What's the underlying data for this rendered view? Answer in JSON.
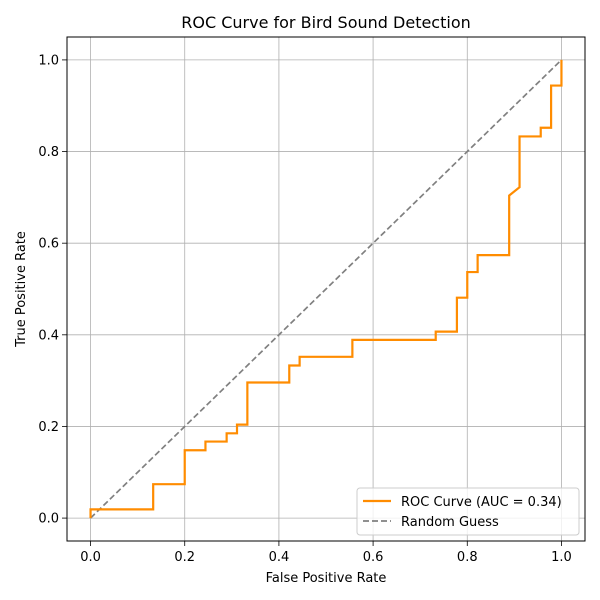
{
  "chart_data": {
    "type": "line",
    "title": "ROC Curve for Bird Sound Detection",
    "xlabel": "False Positive Rate",
    "ylabel": "True Positive Rate",
    "xlim": [
      -0.05,
      1.05
    ],
    "ylim": [
      -0.05,
      1.05
    ],
    "xticks": [
      0.0,
      0.2,
      0.4,
      0.6,
      0.8,
      1.0
    ],
    "yticks": [
      0.0,
      0.2,
      0.4,
      0.6,
      0.8,
      1.0
    ],
    "xtick_labels": [
      "0.0",
      "0.2",
      "0.4",
      "0.6",
      "0.8",
      "1.0"
    ],
    "ytick_labels": [
      "0.0",
      "0.2",
      "0.4",
      "0.6",
      "0.8",
      "1.0"
    ],
    "grid": true,
    "legend_position": "lower-right",
    "series": [
      {
        "name": "ROC Curve (AUC = 0.34)",
        "color": "#ff8c00",
        "style": "solid",
        "x": [
          0.0,
          0.0,
          0.133,
          0.133,
          0.2,
          0.2,
          0.244,
          0.244,
          0.289,
          0.289,
          0.311,
          0.311,
          0.333,
          0.333,
          0.422,
          0.422,
          0.444,
          0.444,
          0.556,
          0.556,
          0.733,
          0.733,
          0.778,
          0.778,
          0.8,
          0.8,
          0.822,
          0.822,
          0.889,
          0.889,
          0.911,
          0.911,
          0.956,
          0.956,
          0.978,
          0.978,
          1.0,
          1.0
        ],
        "y": [
          0.0,
          0.019,
          0.019,
          0.074,
          0.074,
          0.148,
          0.148,
          0.167,
          0.167,
          0.185,
          0.185,
          0.204,
          0.204,
          0.296,
          0.296,
          0.333,
          0.333,
          0.352,
          0.352,
          0.389,
          0.389,
          0.407,
          0.407,
          0.481,
          0.481,
          0.537,
          0.537,
          0.574,
          0.574,
          0.704,
          0.722,
          0.833,
          0.833,
          0.852,
          0.852,
          0.944,
          0.944,
          1.0
        ]
      },
      {
        "name": "Random Guess",
        "color": "#808080",
        "style": "dashed",
        "x": [
          0.0,
          1.0
        ],
        "y": [
          0.0,
          1.0
        ]
      }
    ]
  },
  "colors": {
    "grid": "#b0b0b0",
    "axes": "#000000",
    "legend_border": "#cccccc"
  }
}
